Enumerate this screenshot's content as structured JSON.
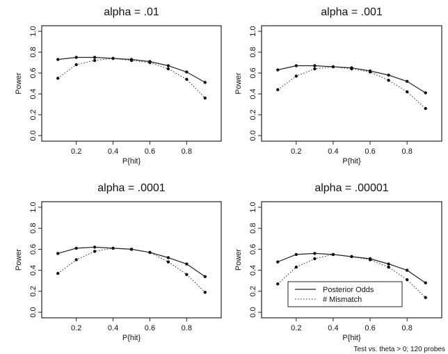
{
  "chart_data": [
    {
      "type": "line",
      "title": "alpha = .01",
      "xlabel": "P{hit}",
      "ylabel": "Power",
      "x": [
        0.1,
        0.2,
        0.3,
        0.4,
        0.5,
        0.6,
        0.7,
        0.8,
        0.9
      ],
      "xticks": [
        "0.2",
        "0.4",
        "0.6",
        "0.8"
      ],
      "yticks": [
        "0.0",
        "0.2",
        "0.4",
        "0.6",
        "0.8",
        "1.0"
      ],
      "xlim": [
        0.05,
        0.95
      ],
      "ylim": [
        0,
        1
      ],
      "series": [
        {
          "name": "Posterior Odds",
          "style": "solid",
          "values": [
            0.73,
            0.75,
            0.75,
            0.74,
            0.73,
            0.71,
            0.67,
            0.61,
            0.51
          ]
        },
        {
          "name": "# Mismatch",
          "style": "dotted",
          "values": [
            0.55,
            0.68,
            0.72,
            0.74,
            0.72,
            0.7,
            0.64,
            0.54,
            0.36
          ]
        }
      ]
    },
    {
      "type": "line",
      "title": "alpha = .001",
      "xlabel": "P{hit}",
      "ylabel": "Power",
      "x": [
        0.1,
        0.2,
        0.3,
        0.4,
        0.5,
        0.6,
        0.7,
        0.8,
        0.9
      ],
      "xticks": [
        "0.2",
        "0.4",
        "0.6",
        "0.8"
      ],
      "yticks": [
        "0.0",
        "0.2",
        "0.4",
        "0.6",
        "0.8",
        "1.0"
      ],
      "xlim": [
        0.05,
        0.95
      ],
      "ylim": [
        0,
        1
      ],
      "series": [
        {
          "name": "Posterior Odds",
          "style": "solid",
          "values": [
            0.63,
            0.67,
            0.67,
            0.66,
            0.65,
            0.62,
            0.58,
            0.52,
            0.41
          ]
        },
        {
          "name": "# Mismatch",
          "style": "dotted",
          "values": [
            0.44,
            0.57,
            0.64,
            0.66,
            0.64,
            0.61,
            0.53,
            0.42,
            0.26
          ]
        }
      ]
    },
    {
      "type": "line",
      "title": "alpha = .0001",
      "xlabel": "P{hit}",
      "ylabel": "Power",
      "x": [
        0.1,
        0.2,
        0.3,
        0.4,
        0.5,
        0.6,
        0.7,
        0.8,
        0.9
      ],
      "xticks": [
        "0.2",
        "0.4",
        "0.6",
        "0.8"
      ],
      "yticks": [
        "0.0",
        "0.2",
        "0.4",
        "0.6",
        "0.8",
        "1.0"
      ],
      "xlim": [
        0.05,
        0.95
      ],
      "ylim": [
        0,
        1
      ],
      "series": [
        {
          "name": "Posterior Odds",
          "style": "solid",
          "values": [
            0.56,
            0.61,
            0.62,
            0.61,
            0.6,
            0.57,
            0.52,
            0.46,
            0.34
          ]
        },
        {
          "name": "# Mismatch",
          "style": "dotted",
          "values": [
            0.37,
            0.5,
            0.58,
            0.61,
            0.6,
            0.57,
            0.48,
            0.36,
            0.19
          ]
        }
      ]
    },
    {
      "type": "line",
      "title": "alpha = .00001",
      "xlabel": "P{hit}",
      "ylabel": "Power",
      "x": [
        0.1,
        0.2,
        0.3,
        0.4,
        0.5,
        0.6,
        0.7,
        0.8,
        0.9
      ],
      "xticks": [
        "0.2",
        "0.4",
        "0.6",
        "0.8"
      ],
      "yticks": [
        "0.0",
        "0.2",
        "0.4",
        "0.6",
        "0.8",
        "1.0"
      ],
      "xlim": [
        0.05,
        0.95
      ],
      "ylim": [
        0,
        1
      ],
      "legend": {
        "placement": "bottom-center",
        "entries": [
          {
            "label": "Posterior Odds",
            "style": "solid"
          },
          {
            "label": "# Mismatch",
            "style": "dotted"
          }
        ]
      },
      "series": [
        {
          "name": "Posterior Odds",
          "style": "solid",
          "values": [
            0.48,
            0.55,
            0.56,
            0.55,
            0.53,
            0.51,
            0.46,
            0.4,
            0.28
          ]
        },
        {
          "name": "# Mismatch",
          "style": "dotted",
          "values": [
            0.27,
            0.43,
            0.51,
            0.55,
            0.53,
            0.5,
            0.43,
            0.31,
            0.14
          ]
        }
      ]
    }
  ],
  "footnote": "Test vs. theta > 0;  120 probes"
}
